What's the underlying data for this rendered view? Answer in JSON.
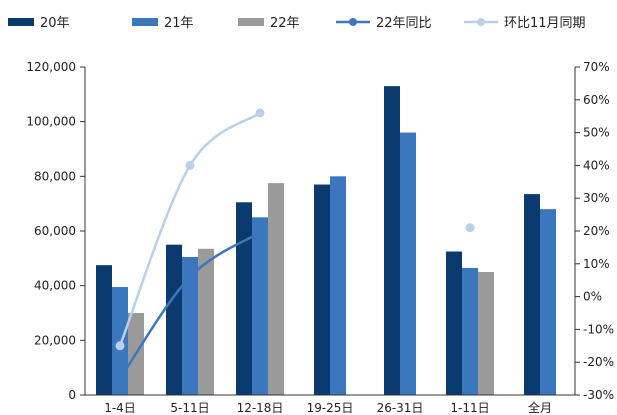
{
  "chart_data": {
    "type": "bar",
    "categories": [
      "1-4日",
      "5-11日",
      "12-18日",
      "19-25日",
      "26-31日",
      "1-11日",
      "全月"
    ],
    "series": [
      {
        "name": "20年",
        "kind": "bar",
        "axis": "left",
        "color": "#0b3a6e",
        "values": [
          47500,
          55000,
          70500,
          77000,
          113000,
          52500,
          73500
        ]
      },
      {
        "name": "21年",
        "kind": "bar",
        "axis": "left",
        "color": "#3a77bd",
        "values": [
          39500,
          50500,
          65000,
          80000,
          96000,
          46500,
          68000
        ]
      },
      {
        "name": "22年",
        "kind": "bar",
        "axis": "left",
        "color": "#9a9a9a",
        "values": [
          30000,
          53500,
          77500,
          null,
          null,
          45000,
          null
        ]
      },
      {
        "name": "22年同比",
        "kind": "line",
        "axis": "right",
        "color": "#3a77bd",
        "values": [
          -25,
          6,
          19.5,
          null,
          null,
          -3,
          null
        ]
      },
      {
        "name": "环比11月同期",
        "kind": "line",
        "axis": "right",
        "color": "#b9d0e8",
        "values": [
          -15,
          40,
          56,
          null,
          null,
          21,
          null
        ]
      }
    ],
    "y_left": {
      "min": 0,
      "max": 120000,
      "ticks": [
        0,
        20000,
        40000,
        60000,
        80000,
        100000,
        120000
      ],
      "tick_labels": [
        "0",
        "20,000",
        "40,000",
        "60,000",
        "80,000",
        "100,000",
        "120,000"
      ]
    },
    "y_right": {
      "min": -30,
      "max": 70,
      "ticks": [
        -30,
        -20,
        -10,
        0,
        10,
        20,
        30,
        40,
        50,
        60,
        70
      ],
      "tick_labels": [
        "-30%",
        "-20%",
        "-10%",
        "0%",
        "10%",
        "20%",
        "30%",
        "40%",
        "50%",
        "60%",
        "70%"
      ]
    },
    "title": "",
    "xlabel": "",
    "grid": false,
    "legend_position": "top"
  }
}
